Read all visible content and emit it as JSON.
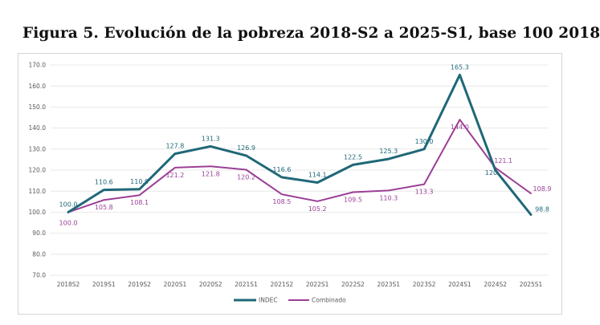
{
  "figure": {
    "title": "Figura 5. Evolución de la pobreza 2018-S2 a 2025-S1, base 100 2018"
  },
  "colors": {
    "indec": "#1f6878",
    "combinado": "#9b3f97",
    "grid": "#e3e3e3",
    "text": "#595959"
  },
  "chart_data": {
    "type": "line",
    "title": "Figura 5. Evolución de la pobreza 2018-S2 a 2025-S1, base 100 2018",
    "categories": [
      "2018S2",
      "2019S1",
      "2019S2",
      "2020S1",
      "2020S2",
      "2021S1",
      "2021S2",
      "2022S1",
      "2022S2",
      "2023S1",
      "2023S2",
      "2024S1",
      "2024S2",
      "2025S1"
    ],
    "ylim": [
      70,
      170
    ],
    "yticks": [
      "70.0",
      "80.0",
      "90.0",
      "100.0",
      "110.0",
      "120.0",
      "130.0",
      "140.0",
      "150.0",
      "160.0",
      "170.0"
    ],
    "grid": true,
    "legend_position": "bottom",
    "series": [
      {
        "name": "INDEC",
        "values": [
          100.0,
          110.6,
          110.9,
          127.8,
          131.3,
          126.9,
          116.6,
          114.1,
          122.5,
          125.3,
          130.0,
          165.3,
          120.0,
          98.8
        ],
        "labels": [
          "100.0",
          "110.6",
          "110.9",
          "127.8",
          "131.3",
          "126.9",
          "116.6",
          "114.1",
          "122.5",
          "125.3",
          "130.0",
          "165.3",
          "120.",
          "98.8"
        ]
      },
      {
        "name": "Combinado",
        "values": [
          100.0,
          105.8,
          108.1,
          121.2,
          121.8,
          120.2,
          108.5,
          105.2,
          109.5,
          110.3,
          113.3,
          144.0,
          121.1,
          108.9
        ],
        "labels": [
          "100.0",
          "105.8",
          "108.1",
          "121.2",
          "121.8",
          "120.2",
          "108.5",
          "105.2",
          "109.5",
          "110.3",
          "113.3",
          "144.0",
          "121.1",
          "108.9"
        ]
      }
    ]
  }
}
